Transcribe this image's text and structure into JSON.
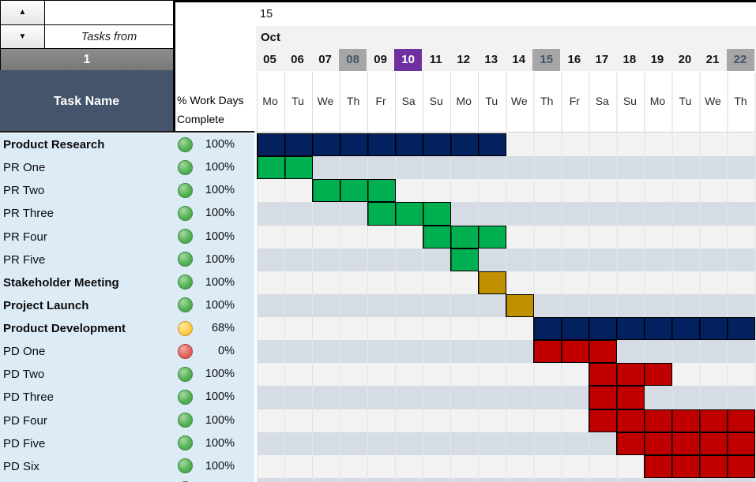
{
  "controls": {
    "up_arrow": "▲",
    "down_arrow": "▼",
    "tasks_from_label": "Tasks from",
    "tasks_from_value": "1"
  },
  "headers": {
    "task_name": "Task Name",
    "percent_line1": "% Work Days",
    "percent_line2": "Complete",
    "week_number": "15",
    "month": "Oct"
  },
  "timeline": {
    "days": [
      {
        "date": "05",
        "dow": "Mo",
        "highlight": null
      },
      {
        "date": "06",
        "dow": "Tu",
        "highlight": null
      },
      {
        "date": "07",
        "dow": "We",
        "highlight": null
      },
      {
        "date": "08",
        "dow": "Th",
        "highlight": "gray"
      },
      {
        "date": "09",
        "dow": "Fr",
        "highlight": null
      },
      {
        "date": "10",
        "dow": "Sa",
        "highlight": "purple"
      },
      {
        "date": "11",
        "dow": "Su",
        "highlight": null
      },
      {
        "date": "12",
        "dow": "Mo",
        "highlight": null
      },
      {
        "date": "13",
        "dow": "Tu",
        "highlight": null
      },
      {
        "date": "14",
        "dow": "We",
        "highlight": null
      },
      {
        "date": "15",
        "dow": "Th",
        "highlight": "gray"
      },
      {
        "date": "16",
        "dow": "Fr",
        "highlight": null
      },
      {
        "date": "17",
        "dow": "Sa",
        "highlight": null
      },
      {
        "date": "18",
        "dow": "Su",
        "highlight": null
      },
      {
        "date": "19",
        "dow": "Mo",
        "highlight": null
      },
      {
        "date": "20",
        "dow": "Tu",
        "highlight": null
      },
      {
        "date": "21",
        "dow": "We",
        "highlight": null
      },
      {
        "date": "22",
        "dow": "Th",
        "highlight": "gray"
      }
    ]
  },
  "tasks": [
    {
      "name": "Product Research",
      "bold": true,
      "status": "green",
      "percent": "100%",
      "bar": {
        "color": "navy",
        "start": 0,
        "len": 9,
        "clipped": false
      }
    },
    {
      "name": "PR One",
      "bold": false,
      "status": "green",
      "percent": "100%",
      "bar": {
        "color": "green",
        "start": 0,
        "len": 2,
        "clipped": false
      }
    },
    {
      "name": "PR Two",
      "bold": false,
      "status": "green",
      "percent": "100%",
      "bar": {
        "color": "green",
        "start": 2,
        "len": 3,
        "clipped": false
      }
    },
    {
      "name": "PR Three",
      "bold": false,
      "status": "green",
      "percent": "100%",
      "bar": {
        "color": "green",
        "start": 4,
        "len": 3,
        "clipped": false
      }
    },
    {
      "name": "PR Four",
      "bold": false,
      "status": "green",
      "percent": "100%",
      "bar": {
        "color": "green",
        "start": 6,
        "len": 3,
        "clipped": false
      }
    },
    {
      "name": "PR Five",
      "bold": false,
      "status": "green",
      "percent": "100%",
      "bar": {
        "color": "green",
        "start": 7,
        "len": 1,
        "clipped": false
      }
    },
    {
      "name": "Stakeholder Meeting",
      "bold": true,
      "status": "green",
      "percent": "100%",
      "bar": {
        "color": "gold",
        "start": 8,
        "len": 1,
        "clipped": false
      }
    },
    {
      "name": "Project Launch",
      "bold": true,
      "status": "green",
      "percent": "100%",
      "bar": {
        "color": "gold",
        "start": 9,
        "len": 1,
        "clipped": false
      }
    },
    {
      "name": "Product Development",
      "bold": true,
      "status": "yellow",
      "percent": "68%",
      "bar": {
        "color": "navy",
        "start": 10,
        "len": 8,
        "clipped": true
      }
    },
    {
      "name": "PD One",
      "bold": false,
      "status": "red",
      "percent": "0%",
      "bar": {
        "color": "red",
        "start": 10,
        "len": 3,
        "clipped": false
      }
    },
    {
      "name": "PD Two",
      "bold": false,
      "status": "green",
      "percent": "100%",
      "bar": {
        "color": "red",
        "start": 12,
        "len": 3,
        "clipped": false
      }
    },
    {
      "name": "PD Three",
      "bold": false,
      "status": "green",
      "percent": "100%",
      "bar": {
        "color": "red",
        "start": 12,
        "len": 2,
        "clipped": false
      }
    },
    {
      "name": "PD Four",
      "bold": false,
      "status": "green",
      "percent": "100%",
      "bar": {
        "color": "red",
        "start": 12,
        "len": 6,
        "clipped": true
      }
    },
    {
      "name": "PD Five",
      "bold": false,
      "status": "green",
      "percent": "100%",
      "bar": {
        "color": "red",
        "start": 13,
        "len": 5,
        "clipped": true
      }
    },
    {
      "name": "PD Six",
      "bold": false,
      "status": "green",
      "percent": "100%",
      "bar": {
        "color": "red",
        "start": 14,
        "len": 4,
        "clipped": true
      }
    },
    {
      "name": "",
      "bold": false,
      "status": "green",
      "percent": "",
      "bar": null,
      "partial": true
    }
  ],
  "chart_data": {
    "type": "gantt",
    "month": "Oct",
    "visible_date_range": [
      "Oct 05",
      "Oct 22"
    ],
    "highlighted_dates": {
      "gray": [
        "08",
        "15",
        "22"
      ],
      "purple": [
        "10"
      ]
    },
    "rows": [
      {
        "task": "Product Research",
        "start": "Oct 05",
        "end": "Oct 13",
        "color": "navy",
        "percent": "100%"
      },
      {
        "task": "PR One",
        "start": "Oct 05",
        "end": "Oct 06",
        "color": "green",
        "percent": "100%"
      },
      {
        "task": "PR Two",
        "start": "Oct 07",
        "end": "Oct 09",
        "color": "green",
        "percent": "100%"
      },
      {
        "task": "PR Three",
        "start": "Oct 09",
        "end": "Oct 11",
        "color": "green",
        "percent": "100%"
      },
      {
        "task": "PR Four",
        "start": "Oct 11",
        "end": "Oct 13",
        "color": "green",
        "percent": "100%"
      },
      {
        "task": "PR Five",
        "start": "Oct 12",
        "end": "Oct 12",
        "color": "green",
        "percent": "100%"
      },
      {
        "task": "Stakeholder Meeting",
        "start": "Oct 13",
        "end": "Oct 13",
        "color": "gold",
        "percent": "100%"
      },
      {
        "task": "Project Launch",
        "start": "Oct 14",
        "end": "Oct 14",
        "color": "gold",
        "percent": "100%"
      },
      {
        "task": "Product Development",
        "start": "Oct 15",
        "end": "Oct 22+",
        "color": "navy",
        "percent": "68%"
      },
      {
        "task": "PD One",
        "start": "Oct 15",
        "end": "Oct 17",
        "color": "red",
        "percent": "0%"
      },
      {
        "task": "PD Two",
        "start": "Oct 17",
        "end": "Oct 19",
        "color": "red",
        "percent": "100%"
      },
      {
        "task": "PD Three",
        "start": "Oct 17",
        "end": "Oct 18",
        "color": "red",
        "percent": "100%"
      },
      {
        "task": "PD Four",
        "start": "Oct 17",
        "end": "Oct 22+",
        "color": "red",
        "percent": "100%"
      },
      {
        "task": "PD Five",
        "start": "Oct 18",
        "end": "Oct 22+",
        "color": "red",
        "percent": "100%"
      },
      {
        "task": "PD Six",
        "start": "Oct 19",
        "end": "Oct 22+",
        "color": "red",
        "percent": "100%"
      }
    ]
  },
  "colors": {
    "navy": "#02215E",
    "green": "#00B050",
    "gold": "#BF9000",
    "red": "#C00000",
    "panel_blue": "#DDEBF7",
    "row_light": "#F2F2F2",
    "row_blue": "#D6DCE4",
    "header_slate": "#44546A",
    "highlight_gray": "#A6A6A6",
    "highlight_purple": "#7030A0"
  }
}
